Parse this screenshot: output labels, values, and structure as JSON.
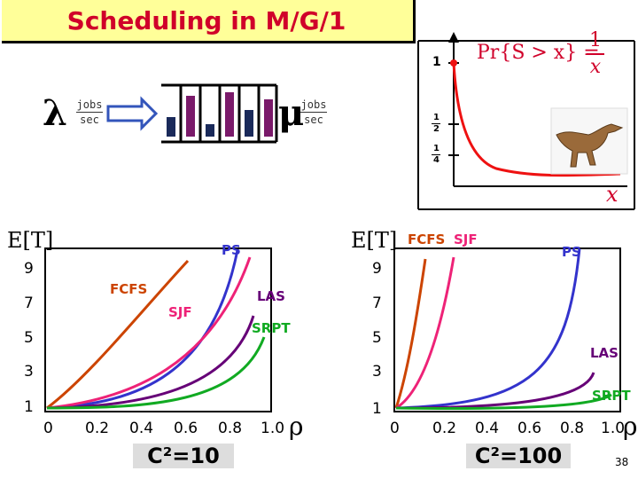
{
  "title": "Scheduling in M/G/1",
  "arrival": {
    "symbol": "λ",
    "unit_num": "jobs",
    "unit_den": "sec"
  },
  "service": {
    "symbol": "μ",
    "unit_num": "jobs",
    "unit_den": "sec"
  },
  "tail_panel": {
    "formula_left": "Pr{S > x} = ",
    "formula_num": "1",
    "formula_den": "x",
    "y_tick_1": "1",
    "y_tick_half_num": "1",
    "y_tick_half_den": "2",
    "y_tick_quarter_num": "1",
    "y_tick_quarter_den": "4",
    "x_label": "x"
  },
  "charts": [
    {
      "y_title": "E[T]",
      "y_ticks": [
        "9",
        "7",
        "5",
        "3",
        "1"
      ],
      "x_ticks": [
        "0",
        "0.2",
        "0.4",
        "0.6",
        "0.8",
        "1.0"
      ],
      "x_label": "ρ",
      "caption": "C²=10",
      "labels": {
        "PS": "PS",
        "FCFS": "FCFS",
        "SJF": "SJF",
        "LAS": "LAS",
        "SRPT": "SRPT"
      }
    },
    {
      "y_title": "E[T]",
      "y_ticks": [
        "9",
        "7",
        "5",
        "3",
        "1"
      ],
      "x_ticks": [
        "0",
        "0.2",
        "0.4",
        "0.6",
        "0.8",
        "1.0"
      ],
      "x_label": "ρ",
      "caption": "C²=100",
      "labels": {
        "FCFS": "FCFS",
        "SJF": "SJF",
        "PS": "PS",
        "LAS": "LAS",
        "SRPT": "SRPT"
      }
    }
  ],
  "colors": {
    "title_bg": "#ffff99",
    "title_text": "#d0002a",
    "PS": "#3333cc",
    "FCFS": "#cc4400",
    "SJF": "#ee2277",
    "LAS": "#660077",
    "SRPT": "#11aa22",
    "tail_curve": "#ee1111",
    "arrow": "#3355bb"
  },
  "page_number": "38"
}
